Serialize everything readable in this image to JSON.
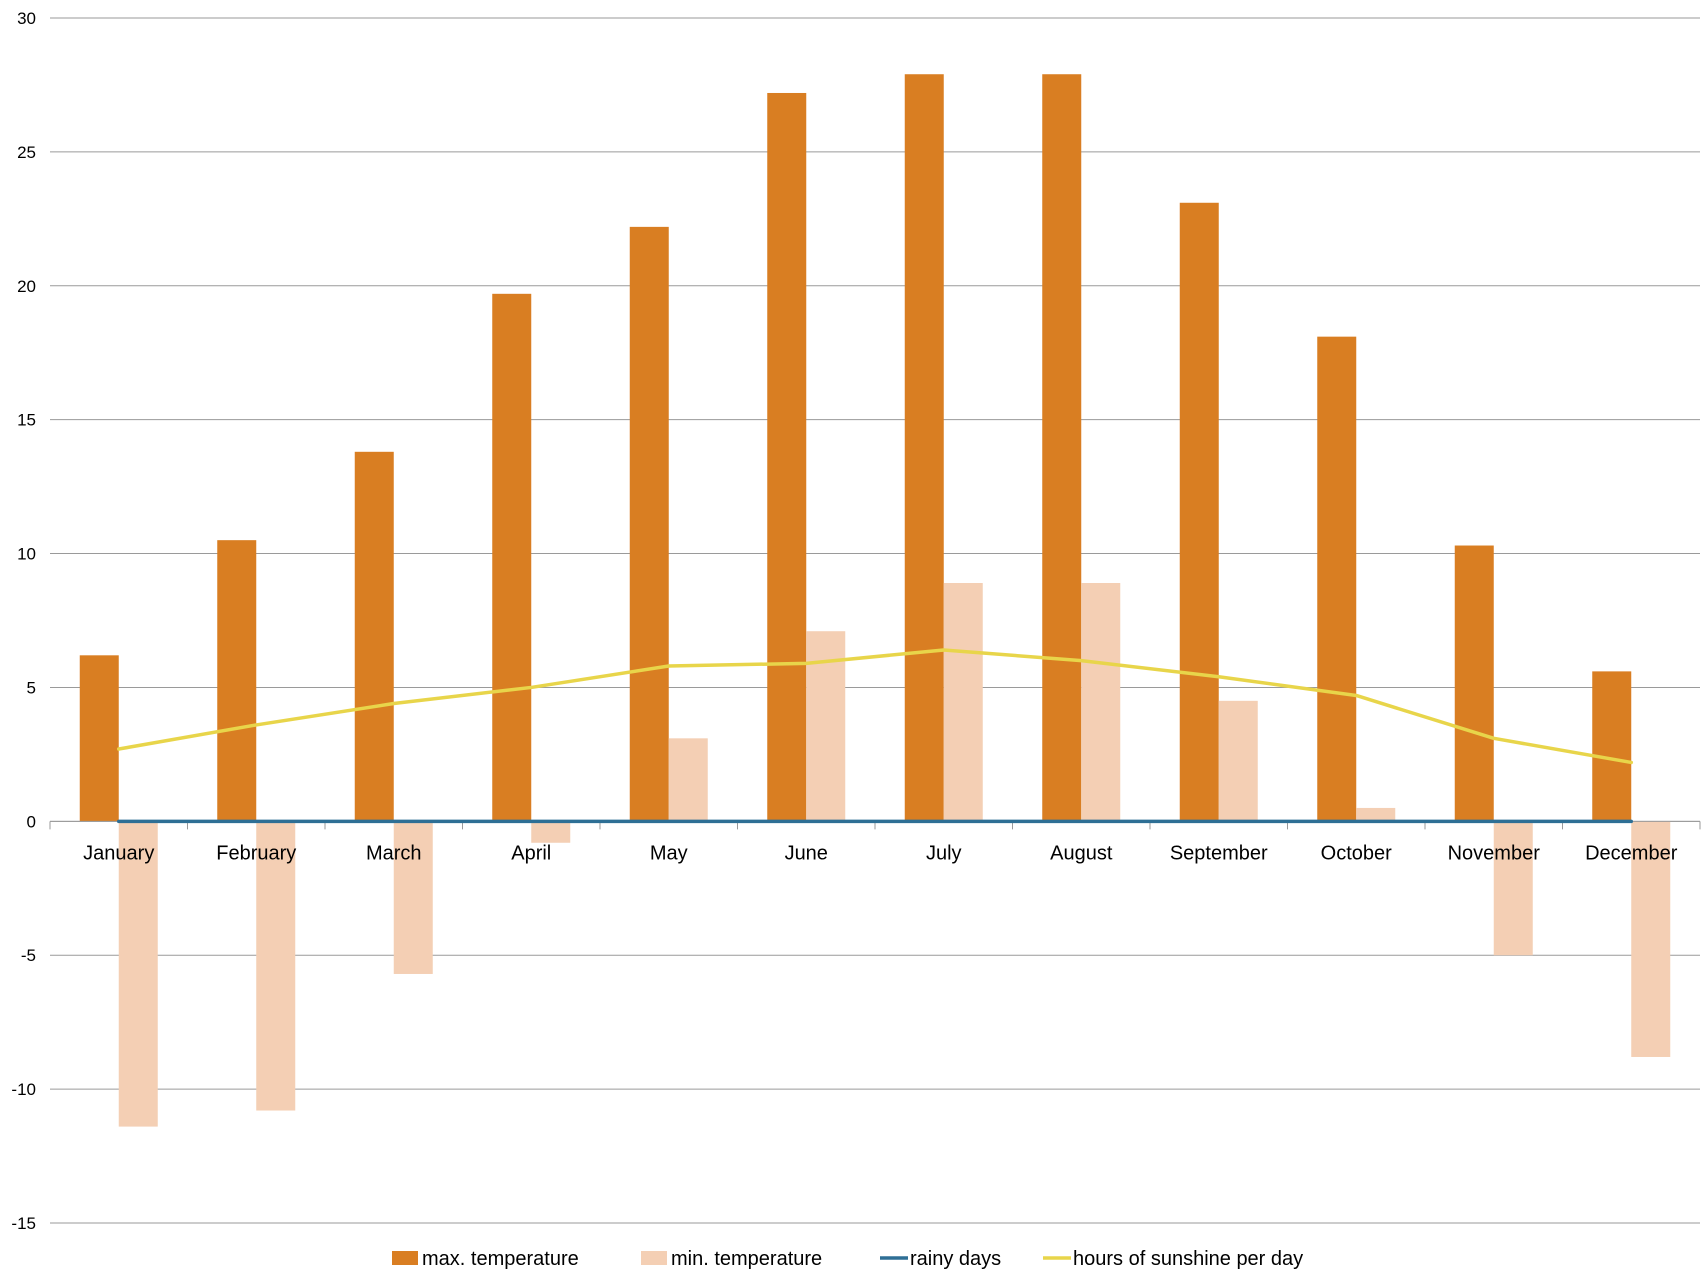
{
  "chart_data": {
    "type": "bar",
    "title": "",
    "xlabel": "",
    "ylabel": "",
    "ylim": [
      -15,
      30
    ],
    "yticks": [
      30,
      25,
      20,
      15,
      10,
      5,
      0,
      -5,
      -10,
      -15
    ],
    "grid": true,
    "legend_position": "bottom",
    "categories": [
      "January",
      "February",
      "March",
      "April",
      "May",
      "June",
      "July",
      "August",
      "September",
      "October",
      "November",
      "December"
    ],
    "series": [
      {
        "name": "max.  temperature",
        "kind": "bar",
        "color": "#D97E22",
        "values": [
          6.2,
          10.5,
          13.8,
          19.7,
          22.2,
          27.2,
          27.9,
          27.9,
          23.1,
          18.1,
          10.3,
          5.6
        ]
      },
      {
        "name": "min. temperature",
        "kind": "bar",
        "color": "#F4CFB4",
        "values": [
          -11.4,
          -10.8,
          -5.7,
          -0.8,
          3.1,
          7.1,
          8.9,
          8.9,
          4.5,
          0.5,
          -5.0,
          -8.8
        ]
      },
      {
        "name": "rainy days",
        "kind": "line",
        "color": "#2E6F95",
        "values": [
          0,
          0,
          0,
          0,
          0,
          0,
          0,
          0,
          0,
          0,
          0,
          0
        ]
      },
      {
        "name": "hours of sunshine per day",
        "kind": "line",
        "color": "#E8D54A",
        "values": [
          2.7,
          3.6,
          4.4,
          5.0,
          5.8,
          5.9,
          6.4,
          6.0,
          5.4,
          4.7,
          3.1,
          2.2
        ]
      }
    ]
  }
}
